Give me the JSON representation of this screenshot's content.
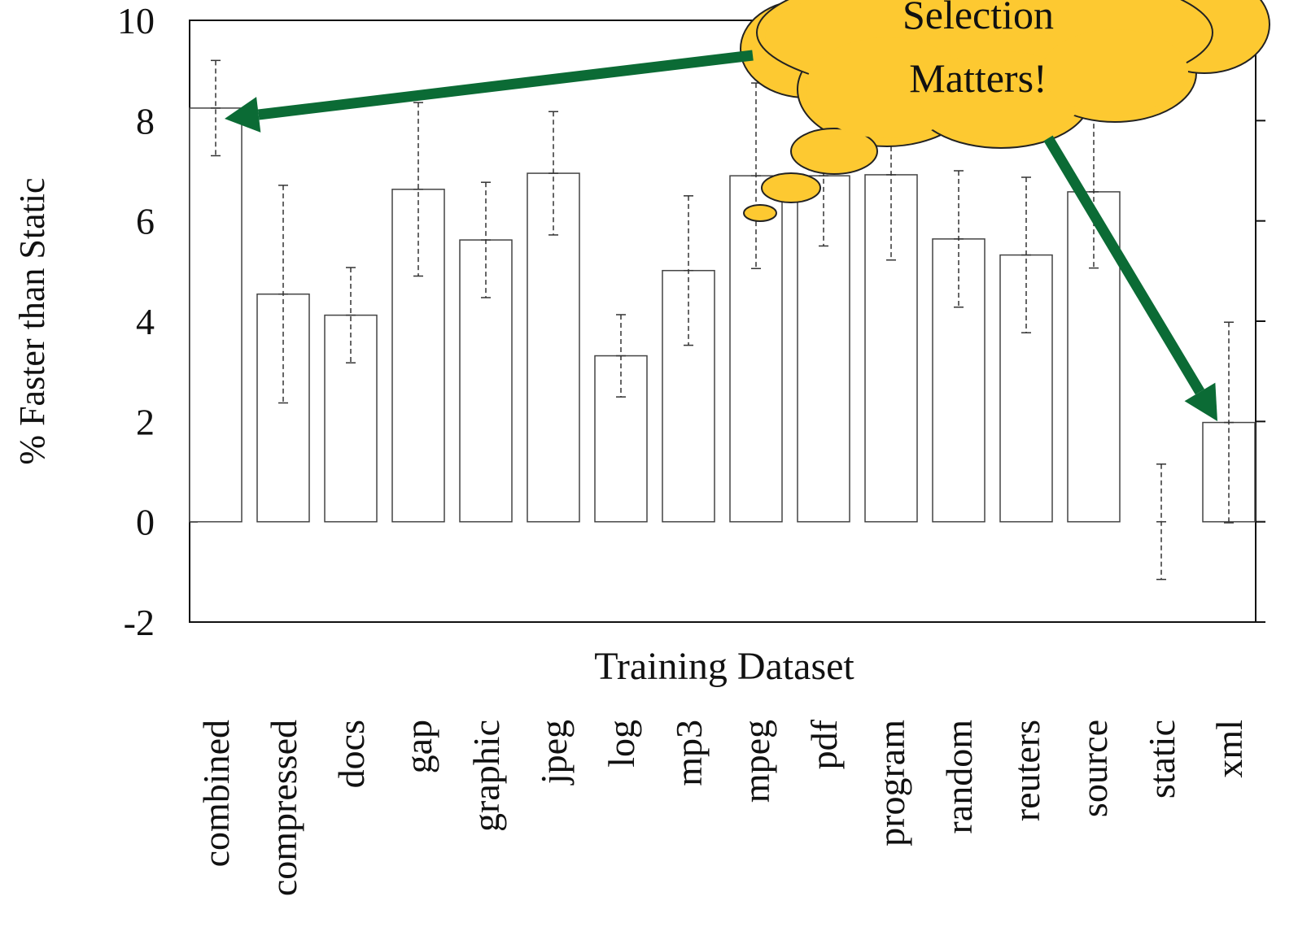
{
  "chart_data": {
    "type": "bar",
    "y_label": "% Faster than Static",
    "x_label": "Training Dataset",
    "annotation": [
      "Selection",
      "Matters!"
    ],
    "categories": [
      "combined",
      "compressed",
      "docs",
      "gap",
      "graphic",
      "jpeg",
      "log",
      "mp3",
      "mpeg",
      "pdf",
      "program",
      "random",
      "reuters",
      "source",
      "static",
      "xml"
    ],
    "values": [
      8.25,
      4.54,
      4.12,
      6.63,
      5.62,
      6.95,
      3.31,
      5.01,
      6.9,
      6.9,
      6.92,
      5.64,
      5.32,
      6.58,
      0,
      1.98
    ],
    "errors": [
      0.95,
      2.17,
      0.95,
      1.73,
      1.15,
      1.23,
      0.82,
      1.49,
      1.85,
      1.4,
      1.7,
      1.36,
      1.55,
      1.52,
      1.15,
      2.0
    ],
    "color": "#ffffff",
    "ylim": [
      -2,
      10
    ],
    "yticks": [
      -2,
      0,
      2,
      4,
      6,
      8,
      10
    ],
    "grid": false
  }
}
